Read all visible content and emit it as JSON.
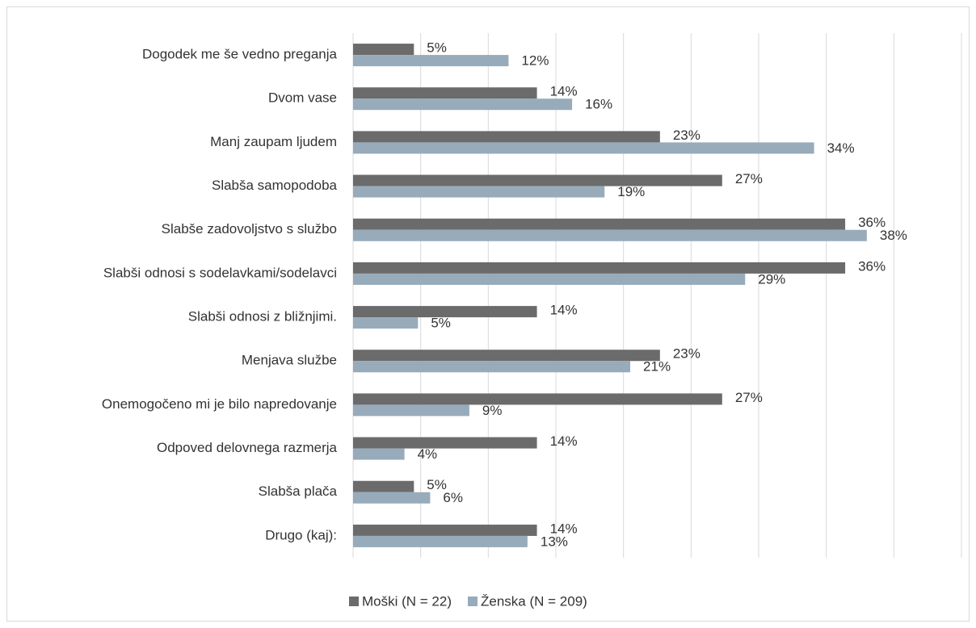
{
  "chart_data": {
    "type": "hbar",
    "categories": [
      "Dogodek me še vedno preganja",
      "Dvom vase",
      "Manj zaupam ljudem",
      "Slabša samopodoba",
      "Slabše zadovoljstvo s službo",
      "Slabši odnosi s sodelavkami/sodelavci",
      "Slabši odnosi z bližnjimi.",
      "Menjava službe",
      "Onemogočeno mi je bilo napredovanje",
      "Odpoved delovnega razmerja",
      "Slabša plača",
      "Drugo (kaj):"
    ],
    "series": [
      {
        "name": "Moški (N = 22)",
        "color": "#6b6b6b",
        "values": [
          4.5,
          13.6,
          22.7,
          27.3,
          36.4,
          36.4,
          13.6,
          22.7,
          27.3,
          13.6,
          4.5,
          13.6
        ],
        "value_labels": [
          "5%",
          "14%",
          "23%",
          "27%",
          "36%",
          "36%",
          "14%",
          "23%",
          "27%",
          "14%",
          "5%",
          "14%"
        ]
      },
      {
        "name": "Ženska (N = 209)",
        "color": "#97abbb",
        "values": [
          11.5,
          16.2,
          34.1,
          18.6,
          38,
          29,
          4.8,
          20.5,
          8.6,
          3.8,
          5.7,
          12.9
        ],
        "value_labels": [
          "12%",
          "16%",
          "34%",
          "19%",
          "38%",
          "29%",
          "5%",
          "21%",
          "9%",
          "4%",
          "6%",
          "13%"
        ]
      }
    ],
    "xlim": [
      0,
      45
    ],
    "xticks": [
      0,
      5,
      10,
      15,
      20,
      25,
      30,
      35,
      40,
      45
    ],
    "grid": true,
    "legend": "bottom"
  }
}
